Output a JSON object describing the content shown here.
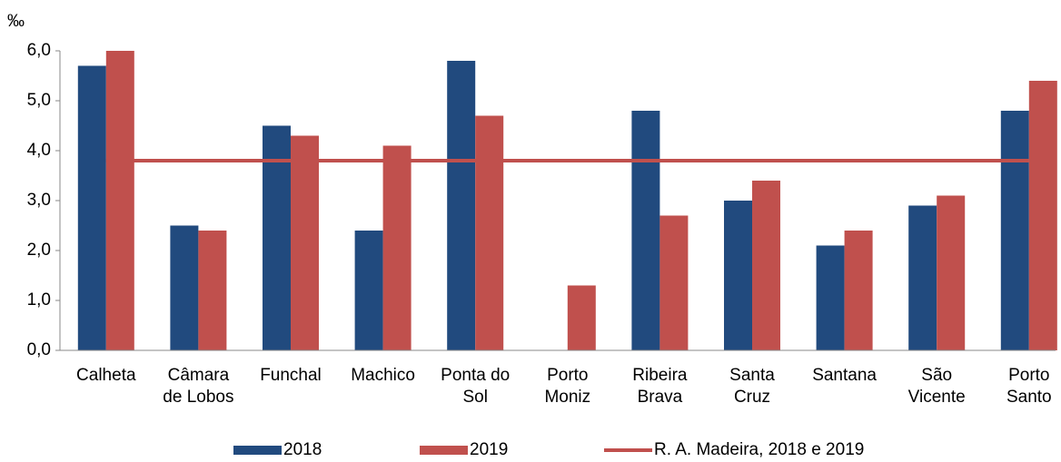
{
  "chart_data": {
    "type": "bar",
    "y_label": "‰",
    "categories": [
      "Calheta",
      "Câmara\nde Lobos",
      "Funchal",
      "Machico",
      "Ponta do\nSol",
      "Porto\nMoniz",
      "Ribeira\nBrava",
      "Santa\nCruz",
      "Santana",
      "São\nVicente",
      "Porto\nSanto"
    ],
    "series": [
      {
        "name": "2018",
        "type": "bar",
        "color": "#214a7e",
        "values": [
          5.7,
          2.5,
          4.5,
          2.4,
          5.8,
          0,
          4.8,
          3.0,
          2.1,
          2.9,
          4.8
        ]
      },
      {
        "name": "2019",
        "type": "bar",
        "color": "#c0504d",
        "values": [
          6.0,
          2.4,
          4.3,
          4.1,
          4.7,
          1.3,
          2.7,
          3.4,
          2.4,
          3.1,
          5.4
        ]
      },
      {
        "name": "R. A. Madeira, 2018 e 2019",
        "type": "line",
        "color": "#c0504d",
        "values": [
          3.8,
          3.8,
          3.8,
          3.8,
          3.8,
          3.8,
          3.8,
          3.8,
          3.8,
          3.8,
          3.8
        ]
      }
    ],
    "ylim": [
      0,
      6
    ],
    "yticks": [
      {
        "value": 0,
        "label": "0,0"
      },
      {
        "value": 1,
        "label": "1,0"
      },
      {
        "value": 2,
        "label": "2,0"
      },
      {
        "value": 3,
        "label": "3,0"
      },
      {
        "value": 4,
        "label": "4,0"
      },
      {
        "value": 5,
        "label": "5,0"
      },
      {
        "value": 6,
        "label": "6,0"
      }
    ],
    "legend": "bottom"
  }
}
